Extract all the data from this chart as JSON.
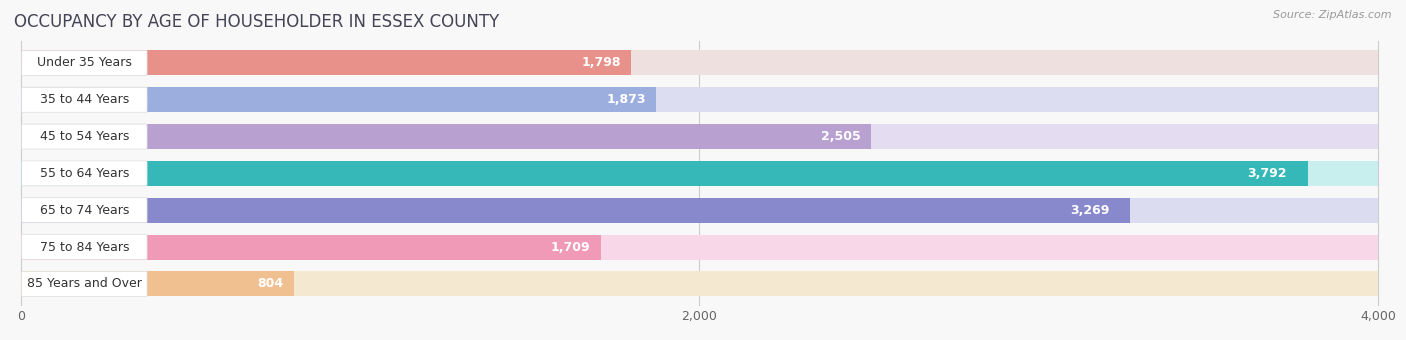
{
  "title": "OCCUPANCY BY AGE OF HOUSEHOLDER IN ESSEX COUNTY",
  "source": "Source: ZipAtlas.com",
  "categories": [
    "Under 35 Years",
    "35 to 44 Years",
    "45 to 54 Years",
    "55 to 64 Years",
    "65 to 74 Years",
    "75 to 84 Years",
    "85 Years and Over"
  ],
  "values": [
    1798,
    1873,
    2505,
    3792,
    3269,
    1709,
    804
  ],
  "bar_colors": [
    "#E8908A",
    "#9BAEDD",
    "#B8A0D0",
    "#36B8B8",
    "#8888CC",
    "#F09AB8",
    "#F0C090"
  ],
  "bar_bg_colors": [
    "#EEE0DE",
    "#DCDDF0",
    "#E4DCF0",
    "#C8EEEE",
    "#DCDCF0",
    "#F8D8E8",
    "#F5E8D0"
  ],
  "label_bg_color": "#FFFFFF",
  "xlim": [
    0,
    4000
  ],
  "xticks": [
    0,
    2000,
    4000
  ],
  "title_fontsize": 12,
  "value_fontsize": 9,
  "label_fontsize": 9,
  "tick_fontsize": 9,
  "background_color": "#F8F8F8"
}
